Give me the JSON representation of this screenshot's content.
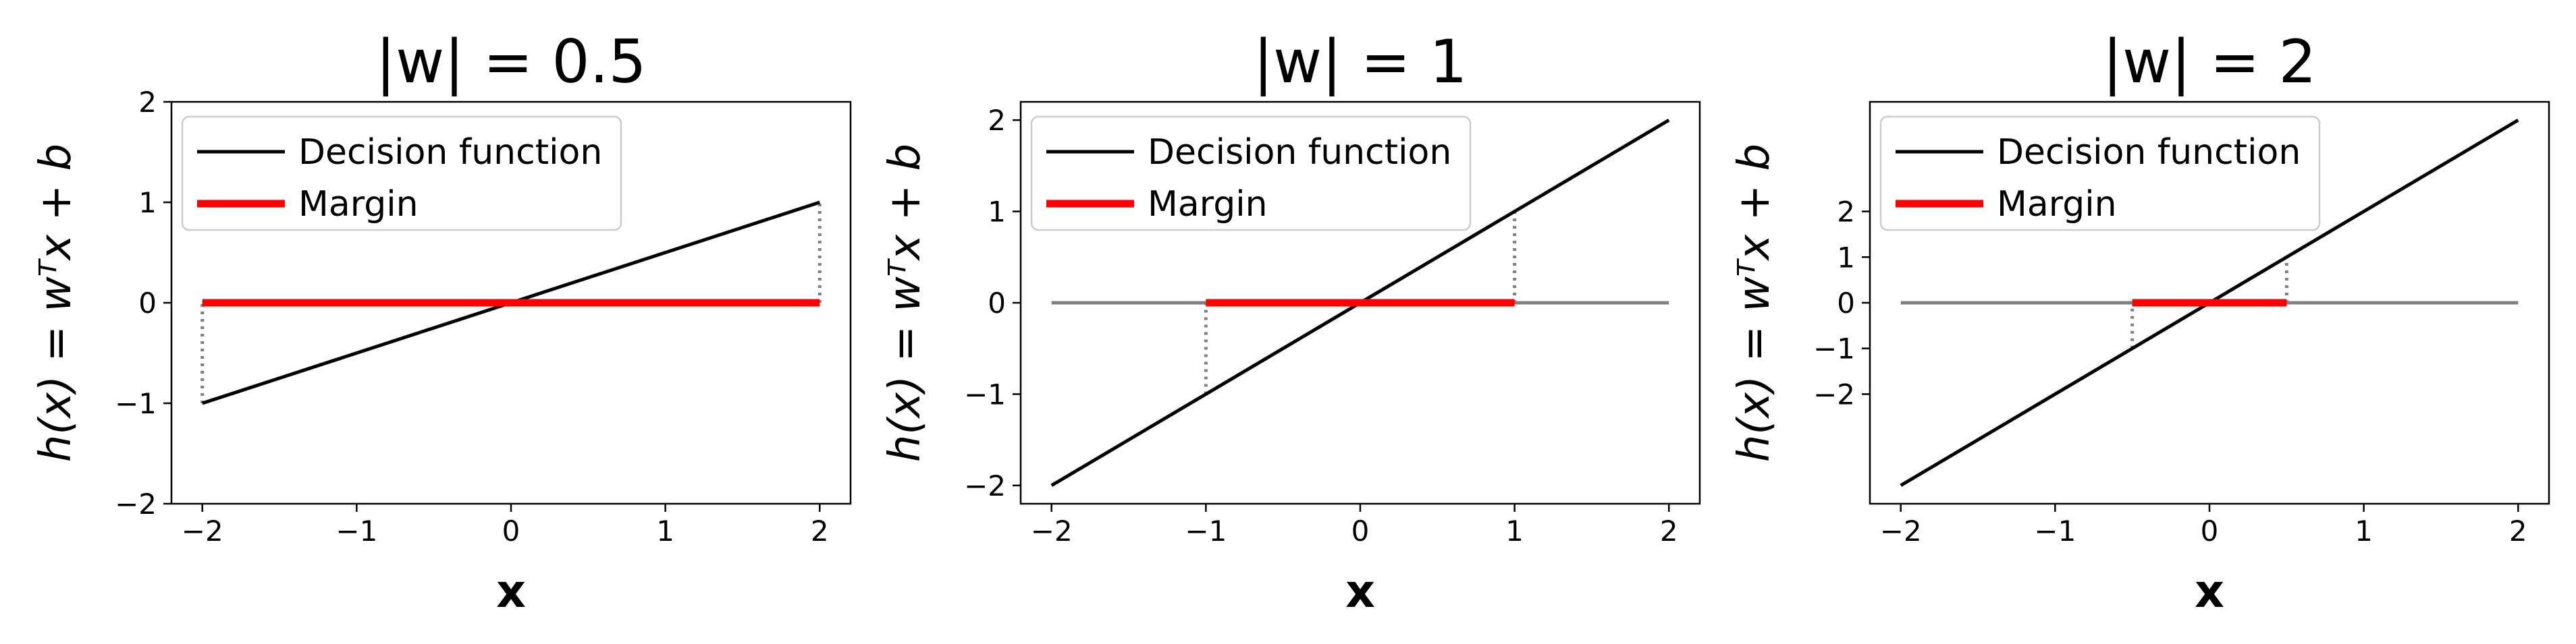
{
  "figure": {
    "colors": {
      "decision": "#000000",
      "margin": "#ff0000",
      "zero_line": "#808080",
      "guide": "#808080"
    }
  },
  "chart_data": [
    {
      "type": "line",
      "title": "|w| = 0.5",
      "xlabel": "x",
      "ylabel": "h(x) = wᵀx + b",
      "xlim": [
        -2.2,
        2.2
      ],
      "ylim": [
        -2.0,
        2.0
      ],
      "xticks": [
        -2,
        -1,
        0,
        1,
        2
      ],
      "yticks": [
        -2,
        -1,
        0,
        1,
        2
      ],
      "xtick_labels": [
        "−2",
        "−1",
        "0",
        "1",
        "2"
      ],
      "ytick_labels": [
        "−2",
        "−1",
        "0",
        "1",
        "2"
      ],
      "grid": false,
      "legend": {
        "position": "top-left",
        "entries": [
          "Decision function",
          "Margin"
        ]
      },
      "series": [
        {
          "name": "Decision function",
          "x": [
            -2,
            2
          ],
          "y": [
            -1,
            1
          ]
        },
        {
          "name": "Margin",
          "x": [
            -2,
            2
          ],
          "y": [
            0,
            0
          ]
        }
      ],
      "zero_line": {
        "x": [
          -2,
          2
        ],
        "y": [
          0,
          0
        ]
      },
      "guides": [
        {
          "x": -2,
          "y": [
            -1,
            0
          ]
        },
        {
          "x": 2,
          "y": [
            0,
            1
          ]
        }
      ]
    },
    {
      "type": "line",
      "title": "|w| = 1",
      "xlabel": "x",
      "ylabel": "h(x) = wᵀx + b",
      "xlim": [
        -2.2,
        2.2
      ],
      "ylim": [
        -2.2,
        2.2
      ],
      "xticks": [
        -2,
        -1,
        0,
        1,
        2
      ],
      "yticks": [
        -2,
        -1,
        0,
        1,
        2
      ],
      "xtick_labels": [
        "−2",
        "−1",
        "0",
        "1",
        "2"
      ],
      "ytick_labels": [
        "−2",
        "−1",
        "0",
        "1",
        "2"
      ],
      "grid": false,
      "legend": {
        "position": "top-left",
        "entries": [
          "Decision function",
          "Margin"
        ]
      },
      "series": [
        {
          "name": "Decision function",
          "x": [
            -2,
            2
          ],
          "y": [
            -2,
            2
          ]
        },
        {
          "name": "Margin",
          "x": [
            -1,
            1
          ],
          "y": [
            0,
            0
          ]
        }
      ],
      "zero_line": {
        "x": [
          -2,
          2
        ],
        "y": [
          0,
          0
        ]
      },
      "guides": [
        {
          "x": -1,
          "y": [
            -1,
            0
          ]
        },
        {
          "x": 1,
          "y": [
            0,
            1
          ]
        }
      ]
    },
    {
      "type": "line",
      "title": "|w| = 2",
      "xlabel": "x",
      "ylabel": "h(x) = wᵀx + b",
      "xlim": [
        -2.2,
        2.2
      ],
      "ylim": [
        -4.4,
        4.4
      ],
      "xticks": [
        -2,
        -1,
        0,
        1,
        2
      ],
      "yticks": [
        -2,
        -1,
        0,
        1,
        2
      ],
      "xtick_labels": [
        "−2",
        "−1",
        "0",
        "1",
        "2"
      ],
      "ytick_labels": [
        "−2",
        "−1",
        "0",
        "1",
        "2"
      ],
      "grid": false,
      "legend": {
        "position": "top-left",
        "entries": [
          "Decision function",
          "Margin"
        ]
      },
      "series": [
        {
          "name": "Decision function",
          "x": [
            -2,
            2
          ],
          "y": [
            -4,
            4
          ]
        },
        {
          "name": "Margin",
          "x": [
            -0.5,
            0.5
          ],
          "y": [
            0,
            0
          ]
        }
      ],
      "zero_line": {
        "x": [
          -2,
          2
        ],
        "y": [
          0,
          0
        ]
      },
      "guides": [
        {
          "x": -0.5,
          "y": [
            -1,
            0
          ]
        },
        {
          "x": 0.5,
          "y": [
            0,
            1
          ]
        }
      ]
    }
  ]
}
